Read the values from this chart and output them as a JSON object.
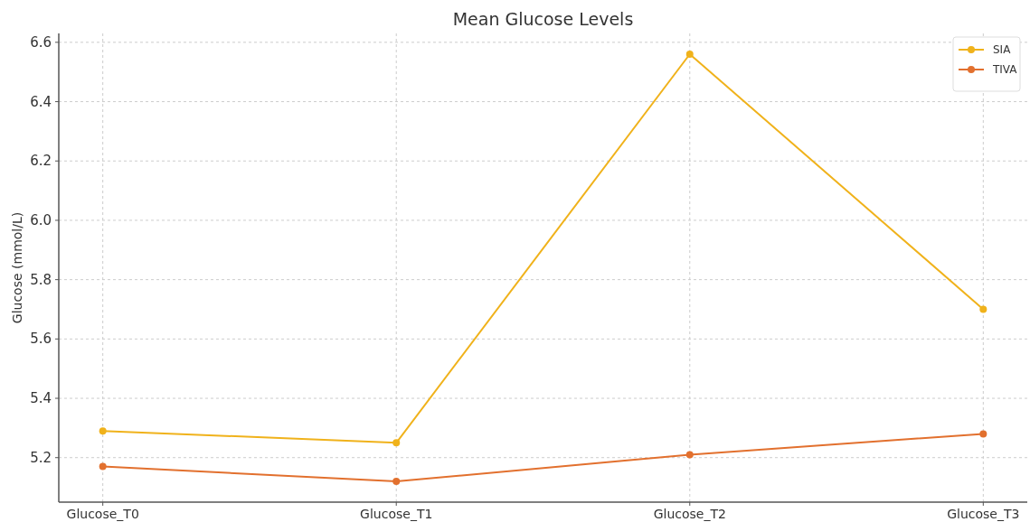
{
  "chart_data": {
    "type": "line",
    "title": "Mean Glucose Levels",
    "ylabel": "Glucose (mmol/L)",
    "categories": [
      "Glucose_T0",
      "Glucose_T1",
      "Glucose_T2",
      "Glucose_T3"
    ],
    "series": [
      {
        "name": "SIA",
        "color": "#f0b21b",
        "values": [
          5.29,
          5.25,
          6.56,
          5.7
        ]
      },
      {
        "name": "TIVA",
        "color": "#e2702e",
        "values": [
          5.17,
          5.12,
          5.21,
          5.28
        ]
      }
    ],
    "ylim": [
      5.05,
      6.63
    ],
    "yticks": [
      {
        "value": 5.2,
        "label": "5.2"
      },
      {
        "value": 5.4,
        "label": "5.4"
      },
      {
        "value": 5.6,
        "label": "5.6"
      },
      {
        "value": 5.8,
        "label": "5.8"
      },
      {
        "value": 6.0,
        "label": "6.0"
      },
      {
        "value": 6.2,
        "label": "6.2"
      },
      {
        "value": 6.4,
        "label": "6.4"
      },
      {
        "value": 6.6,
        "label": "6.6"
      }
    ],
    "grid": true,
    "legend": "top right",
    "marker": "circle",
    "line_style": "solid"
  }
}
